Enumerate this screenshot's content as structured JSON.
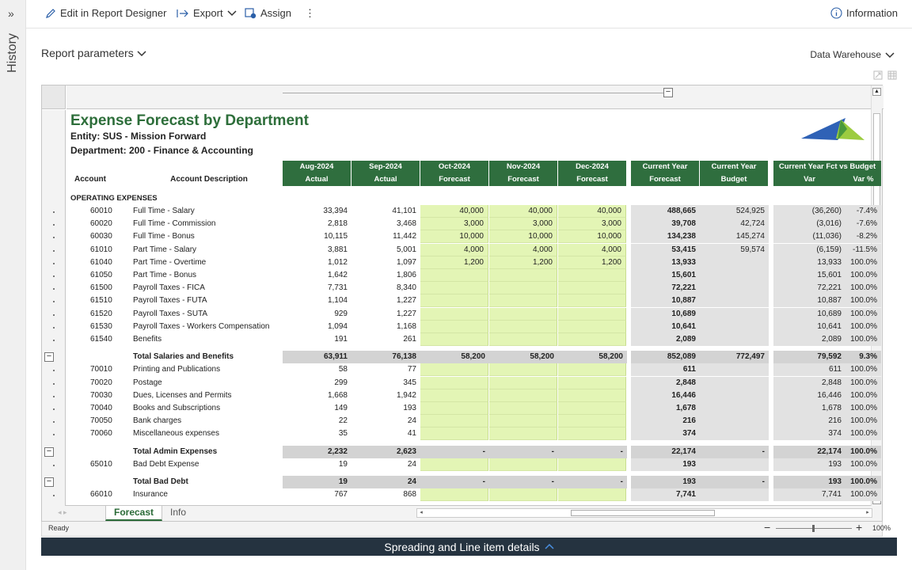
{
  "sidebar": {
    "expand_icon": "»",
    "label": "History"
  },
  "toolbar": {
    "edit_label": "Edit in Report Designer",
    "export_label": "Export",
    "assign_label": "Assign",
    "more_label": "⋮",
    "info_label": "Information"
  },
  "params": {
    "label": "Report parameters"
  },
  "datasource": {
    "label": "Data Warehouse"
  },
  "report": {
    "title": "Expense Forecast by Department",
    "entity": "Entity: SUS - Mission Forward",
    "department": "Department:  200 - Finance & Accounting",
    "col_account": "Account",
    "col_desc": "Account Description",
    "months": [
      {
        "top": "Aug-2024",
        "bot": "Actual"
      },
      {
        "top": "Sep-2024",
        "bot": "Actual"
      },
      {
        "top": "Oct-2024",
        "bot": "Forecast"
      },
      {
        "top": "Nov-2024",
        "bot": "Forecast"
      },
      {
        "top": "Dec-2024",
        "bot": "Forecast"
      }
    ],
    "cy": [
      {
        "top": "Current Year",
        "bot": "Forecast"
      },
      {
        "top": "Current Year",
        "bot": "Budget"
      }
    ],
    "var_title": "Current Year Fct vs Budget",
    "var_cols": [
      "Var",
      "Var %"
    ],
    "section": "OPERATING EXPENSES",
    "rows": [
      {
        "t": "d",
        "acct": "60010",
        "desc": "Full Time - Salary",
        "v": [
          "33,394",
          "41,101",
          "40,000",
          "40,000",
          "40,000",
          "488,665",
          "524,925",
          "(36,260)",
          "-7.4%"
        ]
      },
      {
        "t": "d",
        "acct": "60020",
        "desc": "Full Time - Commission",
        "v": [
          "2,818",
          "3,468",
          "3,000",
          "3,000",
          "3,000",
          "39,708",
          "42,724",
          "(3,016)",
          "-7.6%"
        ]
      },
      {
        "t": "d",
        "acct": "60030",
        "desc": "Full Time - Bonus",
        "v": [
          "10,115",
          "11,442",
          "10,000",
          "10,000",
          "10,000",
          "134,238",
          "145,274",
          "(11,036)",
          "-8.2%"
        ]
      },
      {
        "t": "d",
        "acct": "61010",
        "desc": "Part Time - Salary",
        "v": [
          "3,881",
          "5,001",
          "4,000",
          "4,000",
          "4,000",
          "53,415",
          "59,574",
          "(6,159)",
          "-11.5%"
        ]
      },
      {
        "t": "d",
        "acct": "61040",
        "desc": "Part Time - Overtime",
        "v": [
          "1,012",
          "1,097",
          "1,200",
          "1,200",
          "1,200",
          "13,933",
          "",
          "13,933",
          "100.0%"
        ]
      },
      {
        "t": "d",
        "acct": "61050",
        "desc": "Part Time - Bonus",
        "v": [
          "1,642",
          "1,806",
          "",
          "",
          "",
          "15,601",
          "",
          "15,601",
          "100.0%"
        ]
      },
      {
        "t": "d",
        "acct": "61500",
        "desc": "Payroll Taxes - FICA",
        "v": [
          "7,731",
          "8,340",
          "",
          "",
          "",
          "72,221",
          "",
          "72,221",
          "100.0%"
        ]
      },
      {
        "t": "d",
        "acct": "61510",
        "desc": "Payroll Taxes - FUTA",
        "v": [
          "1,104",
          "1,227",
          "",
          "",
          "",
          "10,887",
          "",
          "10,887",
          "100.0%"
        ]
      },
      {
        "t": "d",
        "acct": "61520",
        "desc": "Payroll Taxes - SUTA",
        "v": [
          "929",
          "1,227",
          "",
          "",
          "",
          "10,689",
          "",
          "10,689",
          "100.0%"
        ]
      },
      {
        "t": "d",
        "acct": "61530",
        "desc": "Payroll Taxes - Workers Compensation",
        "v": [
          "1,094",
          "1,168",
          "",
          "",
          "",
          "10,641",
          "",
          "10,641",
          "100.0%"
        ]
      },
      {
        "t": "d",
        "acct": "61540",
        "desc": "Benefits",
        "v": [
          "191",
          "261",
          "",
          "",
          "",
          "2,089",
          "",
          "2,089",
          "100.0%"
        ]
      },
      {
        "t": "s"
      },
      {
        "t": "tot",
        "acct": "",
        "desc": "Total Salaries and Benefits",
        "v": [
          "63,911",
          "76,138",
          "58,200",
          "58,200",
          "58,200",
          "852,089",
          "772,497",
          "79,592",
          "9.3%"
        ]
      },
      {
        "t": "d",
        "acct": "70010",
        "desc": "Printing and Publications",
        "v": [
          "58",
          "77",
          "",
          "",
          "",
          "611",
          "",
          "611",
          "100.0%"
        ]
      },
      {
        "t": "d",
        "acct": "70020",
        "desc": "Postage",
        "v": [
          "299",
          "345",
          "",
          "",
          "",
          "2,848",
          "",
          "2,848",
          "100.0%"
        ]
      },
      {
        "t": "d",
        "acct": "70030",
        "desc": "Dues, Licenses and Permits",
        "v": [
          "1,668",
          "1,942",
          "",
          "",
          "",
          "16,446",
          "",
          "16,446",
          "100.0%"
        ]
      },
      {
        "t": "d",
        "acct": "70040",
        "desc": "Books and Subscriptions",
        "v": [
          "149",
          "193",
          "",
          "",
          "",
          "1,678",
          "",
          "1,678",
          "100.0%"
        ]
      },
      {
        "t": "d",
        "acct": "70050",
        "desc": "Bank charges",
        "v": [
          "22",
          "24",
          "",
          "",
          "",
          "216",
          "",
          "216",
          "100.0%"
        ]
      },
      {
        "t": "d",
        "acct": "70060",
        "desc": "Miscellaneous expenses",
        "v": [
          "35",
          "41",
          "",
          "",
          "",
          "374",
          "",
          "374",
          "100.0%"
        ]
      },
      {
        "t": "s"
      },
      {
        "t": "tot",
        "acct": "",
        "desc": "Total Admin Expenses",
        "v": [
          "2,232",
          "2,623",
          "-",
          "-",
          "-",
          "22,174",
          "-",
          "22,174",
          "100.0%"
        ]
      },
      {
        "t": "d",
        "acct": "65010",
        "desc": "Bad Debt Expense",
        "v": [
          "19",
          "24",
          "",
          "",
          "",
          "193",
          "",
          "193",
          "100.0%"
        ]
      },
      {
        "t": "s"
      },
      {
        "t": "tot",
        "acct": "",
        "desc": "Total Bad Debt",
        "v": [
          "19",
          "24",
          "-",
          "-",
          "-",
          "193",
          "-",
          "193",
          "100.0%"
        ]
      },
      {
        "t": "d",
        "acct": "66010",
        "desc": "Insurance",
        "v": [
          "767",
          "868",
          "",
          "",
          "",
          "7,741",
          "",
          "7,741",
          "100.0%"
        ]
      }
    ]
  },
  "tabs": [
    {
      "label": "Forecast",
      "active": true
    },
    {
      "label": "Info",
      "active": false
    }
  ],
  "status": {
    "ready": "Ready",
    "zoom": "100%"
  },
  "bottom_bar": {
    "label": "Spreading and Line item details"
  }
}
